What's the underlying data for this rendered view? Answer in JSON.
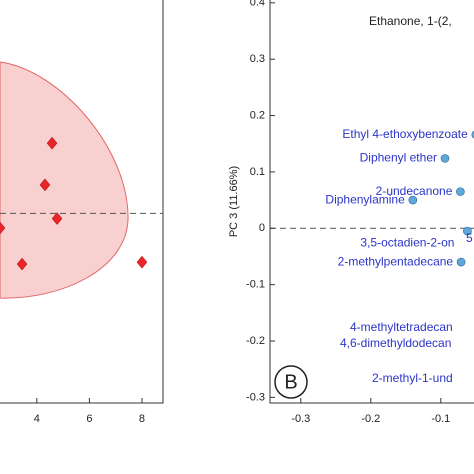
{
  "chart_data": [
    {
      "type": "scatter",
      "marker": "diamond",
      "color": "#e8262a",
      "x": [
        4.58,
        4.31,
        4.77,
        2.6,
        3.44,
        8.0
      ],
      "values": [
        1.48,
        0.6,
        -0.11,
        -0.31,
        -1.07,
        -1.03
      ],
      "xlim": [
        2.6,
        8.8
      ],
      "ylim": [
        -4,
        4.5
      ],
      "xticks": [
        4,
        6,
        8
      ]
    },
    {
      "type": "scatter",
      "marker": "circle",
      "color": "#5fa8dc",
      "ylabel": "PC 3 (11.66%)",
      "panel_label": "B",
      "x": [
        -0.05,
        -0.094,
        -0.072,
        -0.14,
        -0.062,
        -0.071
      ],
      "values": [
        0.166,
        0.124,
        0.065,
        0.05,
        -0.005,
        -0.06
      ],
      "labels": [
        "Ethyl 4-ethoxybenzoate",
        "Diphenyl ether",
        "2-undecanone",
        "Diphenylamine",
        "3,5-octadien-2-on",
        "2-methylpentadecane"
      ],
      "annotations": [
        "Ethanone, 1-(2,",
        "5",
        "4-methyltetradecan",
        "4,6-dimethyldodecan",
        "2-methyl-1-und"
      ],
      "xlim": [
        -0.344,
        -0.044
      ],
      "ylim": [
        -0.31,
        0.405
      ],
      "xticks": [
        -0.3,
        -0.2,
        -0.1
      ],
      "yticks": [
        0.4,
        0.3,
        0.2,
        0.1,
        0,
        -0.1,
        -0.2,
        -0.3
      ]
    }
  ]
}
